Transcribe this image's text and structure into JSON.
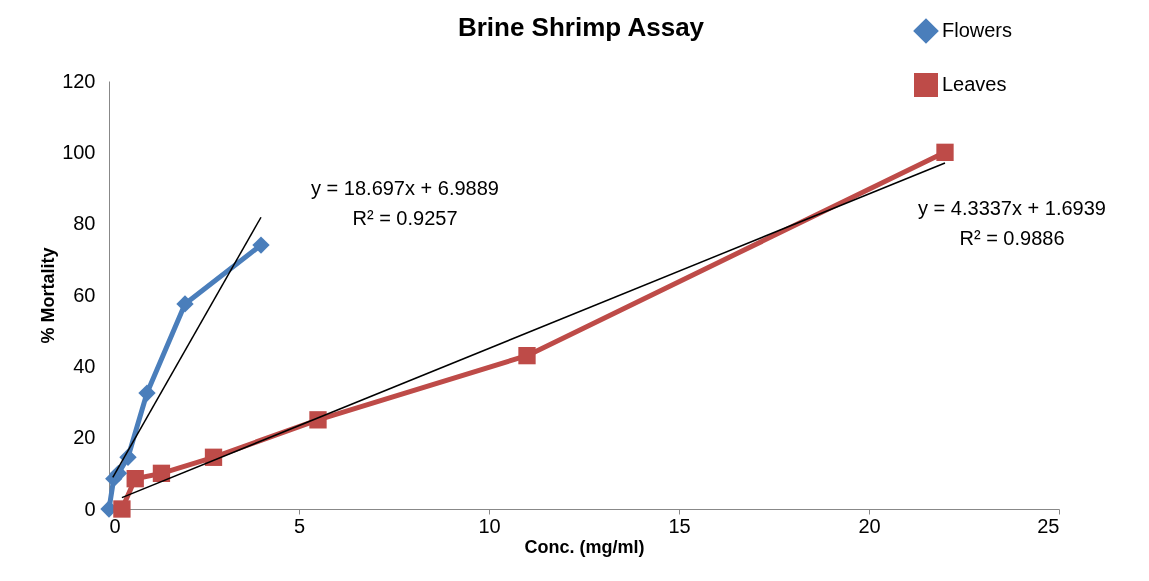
{
  "chart_data": {
    "type": "line",
    "title": "Brine Shrimp Assay",
    "xlabel": "Conc. (mg/ml)",
    "ylabel": "% Mortality",
    "xlim": [
      0,
      25
    ],
    "xticks": [
      0,
      5,
      10,
      15,
      20,
      25
    ],
    "ylim": [
      0,
      120
    ],
    "yticks": [
      0,
      20,
      40,
      60,
      80,
      100,
      120
    ],
    "grid": false,
    "legend": "top right",
    "line_style": "solid",
    "series": [
      {
        "name": "Flowers",
        "color": "#4a7ebb",
        "marker": "diamond",
        "x": [
          0,
          0.125,
          0.25,
          0.5,
          1,
          2,
          4
        ],
        "values": [
          0,
          8.5,
          10,
          14.5,
          32.5,
          57.5,
          74
        ]
      },
      {
        "name": "Leaves",
        "color": "#be4b48",
        "marker": "square",
        "x": [
          0.34,
          0.69,
          1.38,
          2.75,
          5.5,
          11,
          22
        ],
        "values": [
          0,
          8.5,
          10,
          14.5,
          25,
          43,
          100
        ]
      },
      {
        "type": "line",
        "color": "#000000",
        "marker": "none",
        "x": [
          0.1,
          4
        ],
        "values": [
          8.9,
          81.8
        ]
      },
      {
        "type": "line",
        "color": "#000000",
        "marker": "none",
        "x": [
          0.34,
          22
        ],
        "values": [
          3.2,
          97
        ]
      }
    ],
    "annotations": [
      "y = 18.697x + 6.9889\nR² = 0.9257",
      "y = 4.3337x + 1.6939\nR² = 0.9886"
    ]
  }
}
